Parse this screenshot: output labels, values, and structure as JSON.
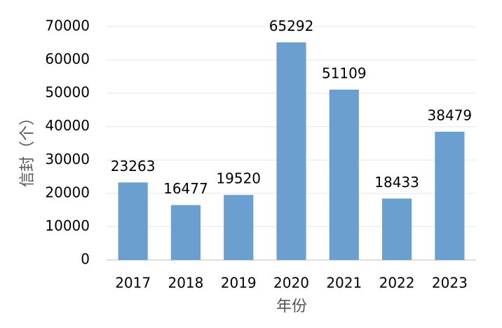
{
  "chart_data": {
    "type": "bar",
    "x_label": "年份",
    "y_label": "信封（个）",
    "categories": [
      "2017",
      "2018",
      "2019",
      "2020",
      "2021",
      "2022",
      "2023"
    ],
    "values": [
      23263,
      16477,
      19520,
      65292,
      51109,
      18433,
      38479
    ],
    "color": "#6a9fcf",
    "ylim": [
      0,
      70000
    ],
    "yticks": [
      0,
      10000,
      20000,
      30000,
      40000,
      50000,
      60000,
      70000
    ],
    "grid": true
  }
}
